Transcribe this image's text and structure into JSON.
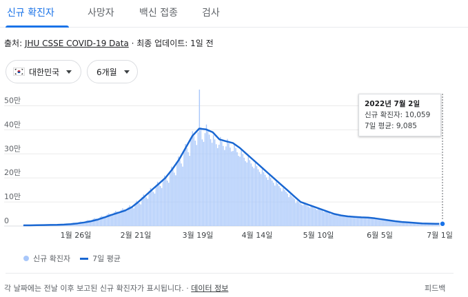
{
  "tabs": [
    {
      "label": "신규 확진자",
      "active": true
    },
    {
      "label": "사망자",
      "active": false
    },
    {
      "label": "백신 접종",
      "active": false
    },
    {
      "label": "검사",
      "active": false
    }
  ],
  "source": {
    "prefix": "출처: ",
    "link": "JHU CSSE COVID-19 Data",
    "updated": " · 최종 업데이트: 1일 전"
  },
  "filters": {
    "region": "대한민국",
    "region_icon": "korea-flag-icon",
    "period": "6개월"
  },
  "tooltip": {
    "date": "2022년 7월 2일",
    "cases_line": "신규 확진자: 10,059",
    "avg_line": "7일 평균: 9,085"
  },
  "legend": {
    "cases": "신규 확진자",
    "avg": "7일 평균"
  },
  "footer": {
    "note": "각 날짜에는 전날 이후 보고된 신규 확진자가 표시됩니다.",
    "dot": " · ",
    "info_link": "데이터 정보",
    "feedback": "피드백"
  },
  "colors": {
    "bar": "#a8c7fa",
    "line": "#1967d2",
    "accent": "#1a73e8"
  },
  "chart_data": {
    "type": "bar",
    "yticks": [
      "0",
      "10만",
      "20만",
      "30만",
      "40만",
      "50만"
    ],
    "ylim": [
      0,
      550000
    ],
    "xticks": [
      "1월 26일",
      "2월 21일",
      "3월 19일",
      "4월 14일",
      "5월 10일",
      "6월 5일",
      "7월 1일"
    ],
    "x_range": [
      "2022-01-01",
      "2022-07-02"
    ],
    "series": [
      {
        "name": "신규 확진자",
        "type": "bar"
      },
      {
        "name": "7일 평균",
        "type": "line",
        "values": [
          3000,
          3000,
          3500,
          4000,
          4500,
          5000,
          6000,
          8000,
          11000,
          15000,
          20000,
          27000,
          36000,
          46000,
          55000,
          64000,
          78000,
          100000,
          125000,
          150000,
          175000,
          200000,
          235000,
          275000,
          325000,
          375000,
          405000,
          402000,
          390000,
          360000,
          352000,
          345000,
          325000,
          300000,
          275000,
          250000,
          225000,
          200000,
          175000,
          150000,
          125000,
          100000,
          90000,
          80000,
          70000,
          60000,
          50000,
          44000,
          40000,
          38000,
          36000,
          35000,
          32000,
          28000,
          24000,
          20000,
          17000,
          15000,
          13000,
          11000,
          10000,
          9500,
          9085
        ]
      }
    ],
    "bars": [
      3100,
      3500,
      2900,
      3300,
      4100,
      3800,
      3600,
      3900,
      3700,
      3300,
      4200,
      4500,
      4300,
      4000,
      3800,
      5000,
      5400,
      5100,
      4800,
      4600,
      6000,
      6800,
      6500,
      6200,
      5900,
      7400,
      8100,
      7800,
      7400,
      7000,
      9600,
      10500,
      10000,
      9500,
      9000,
      12800,
      14000,
      13300,
      12700,
      12000,
      16800,
      18500,
      17600,
      16700,
      15800,
      22400,
      24500,
      23300,
      22100,
      21000,
      30000,
      32800,
      31200,
      29600,
      28100,
      38400,
      42000,
      39900,
      37900,
      36000,
      48000,
      52500,
      49900,
      47300,
      45000,
      57600,
      63000,
      59900,
      56700,
      53900,
      67200,
      73500,
      69800,
      66200,
      62900,
      78400,
      85700,
      81500,
      77200,
      73400,
      96000,
      105000,
      99800,
      94500,
      89900,
      120000,
      131000,
      125000,
      119000,
      113000,
      144000,
      158000,
      150000,
      142000,
      135000,
      168000,
      184000,
      175000,
      166000,
      158000,
      192000,
      210000,
      200000,
      189000,
      180000,
      226000,
      247000,
      235000,
      222000,
      211000,
      264000,
      289000,
      274000,
      260000,
      247000,
      312000,
      341000,
      324000,
      307000,
      292000,
      360000,
      394000,
      374000,
      355000,
      337000,
      389000,
      570000,
      410000,
      360000,
      350000,
      386000,
      422000,
      401000,
      380000,
      361000,
      346000,
      378000,
      360000,
      340000,
      324000,
      338000,
      370000,
      351000,
      333000,
      316000,
      331000,
      362000,
      344000,
      326000,
      310000,
      312000,
      341000,
      324000,
      307000,
      292000,
      288000,
      315000,
      299000,
      284000,
      270000,
      264000,
      289000,
      274000,
      260000,
      247000,
      240000,
      263000,
      249000,
      236000,
      225000,
      216000,
      236000,
      224000,
      213000,
      202000,
      192000,
      210000,
      200000,
      189000,
      180000,
      168000,
      184000,
      175000,
      166000,
      158000,
      144000,
      158000,
      150000,
      142000,
      135000,
      120000,
      131000,
      125000,
      119000,
      113000,
      96000,
      105000,
      99800,
      94500,
      89900,
      86400,
      94500,
      89800,
      85100,
      81000,
      76800,
      84000,
      79800,
      75600,
      72000,
      67200,
      73500,
      69800,
      66200,
      62900,
      57600,
      63000,
      59900,
      56700,
      53900,
      48000,
      52500,
      49900,
      47300,
      45000,
      42200,
      46200,
      43900,
      41600,
      39600,
      38400,
      42000,
      39900,
      37900,
      36000,
      36500,
      39900,
      37900,
      35900,
      34200,
      34600,
      37800,
      35900,
      34100,
      32400,
      33600,
      36800,
      34900,
      33100,
      31500,
      30700,
      33600,
      31900,
      30300,
      28800,
      26900,
      29400,
      27900,
      26500,
      25200,
      23000,
      25200,
      23900,
      22700,
      21600,
      19200,
      21000,
      20000,
      18900,
      18000,
      16300,
      17900,
      17000,
      16100,
      15300,
      14400,
      15800,
      15000,
      14200,
      13500,
      12500,
      13700,
      13000,
      12300,
      11700,
      10600,
      11600,
      11000,
      10400,
      9900,
      9600,
      10500,
      10000,
      9500,
      9000,
      9100,
      10000,
      9500,
      9000,
      8500,
      10059
    ]
  }
}
